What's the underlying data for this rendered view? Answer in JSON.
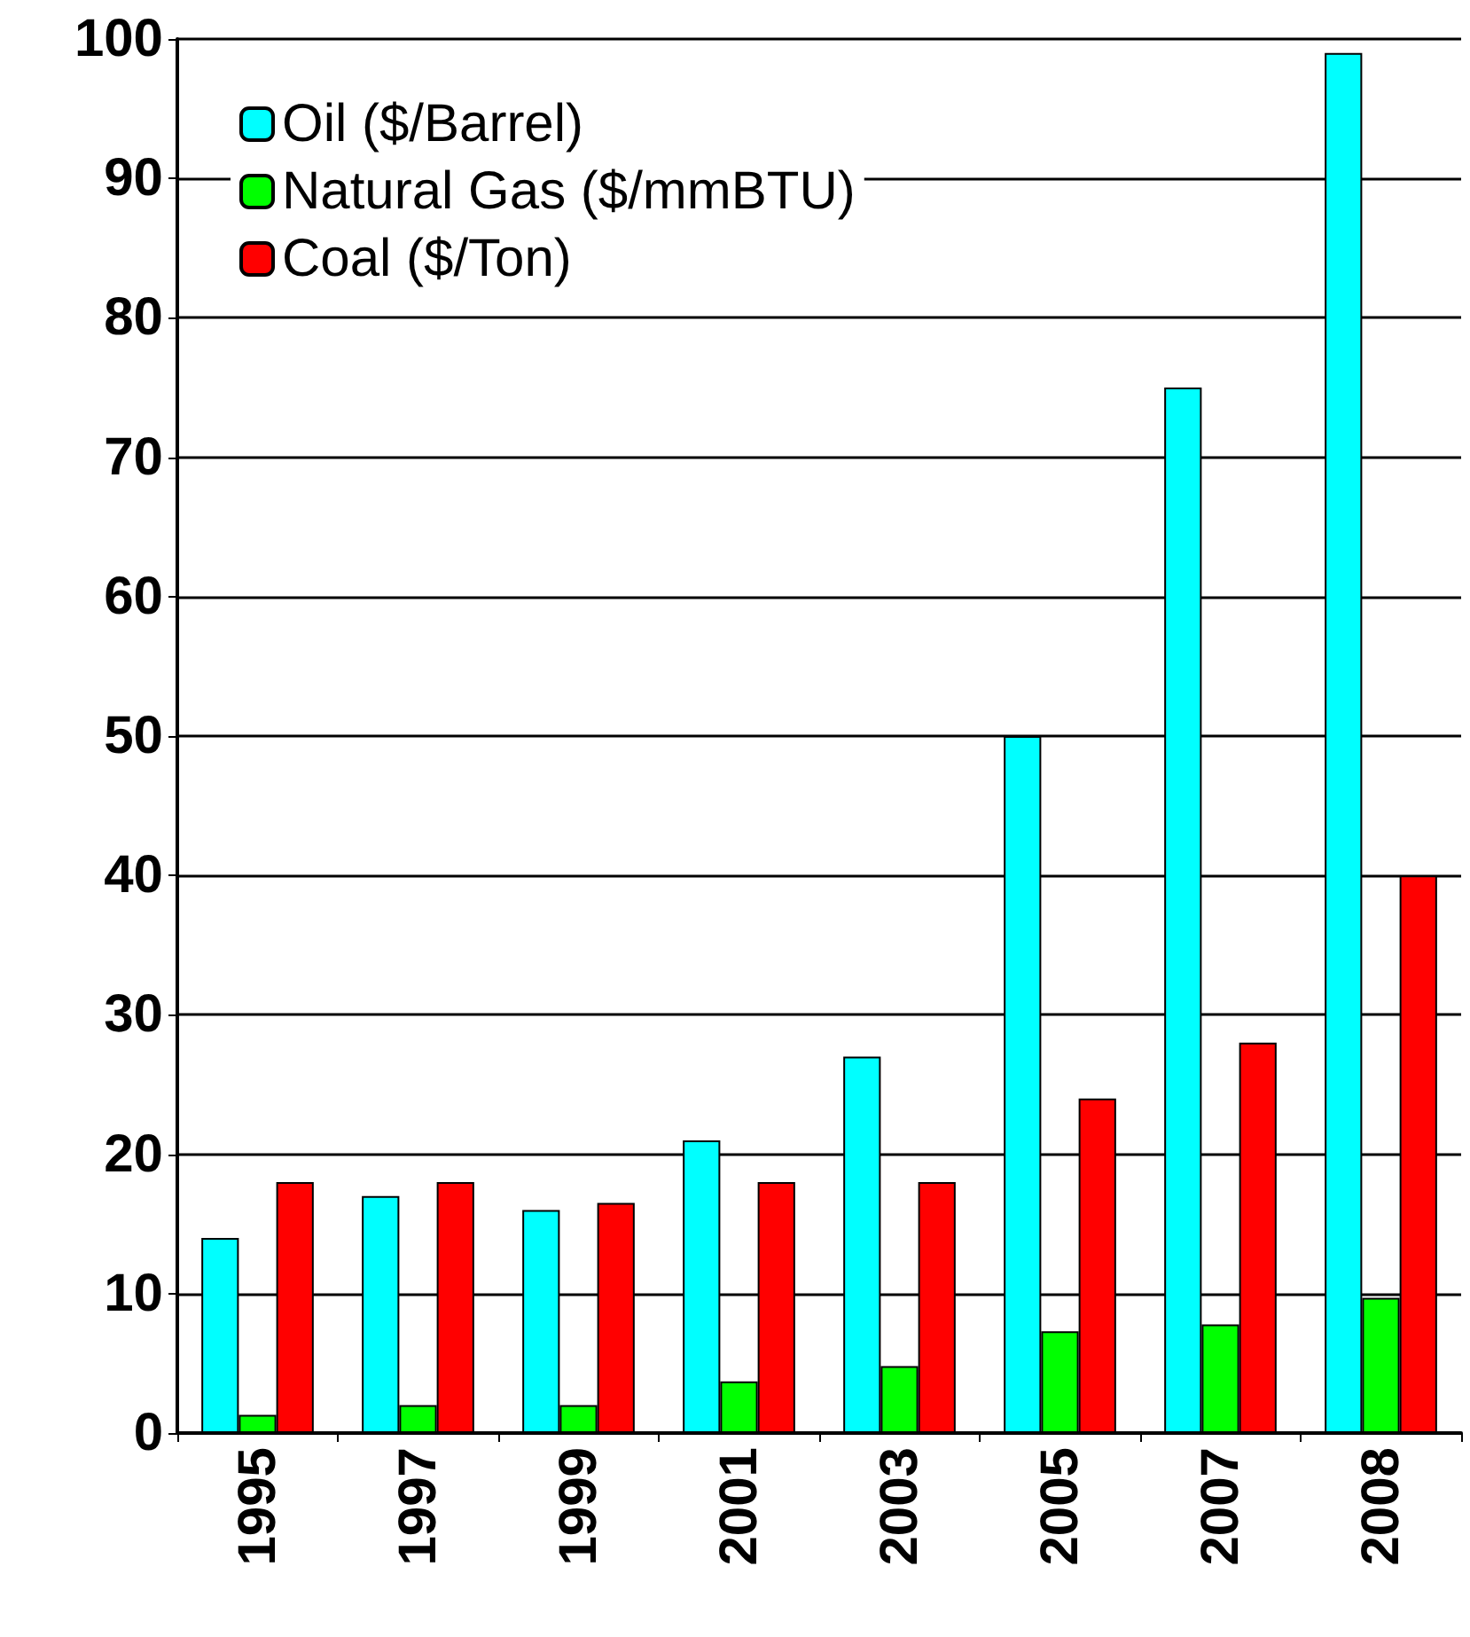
{
  "chart_data": {
    "type": "bar",
    "categories": [
      "1995",
      "1997",
      "1999",
      "2001",
      "2003",
      "2005",
      "2007",
      "2008"
    ],
    "series": [
      {
        "name": "Oil ($/Barrel)",
        "color": "#00ffff",
        "values": [
          14,
          17,
          16,
          21,
          27,
          50,
          75,
          99
        ]
      },
      {
        "name": "Natural Gas ($/mmBTU)",
        "color": "#00ff00",
        "values": [
          1.3,
          2,
          2,
          3.7,
          4.8,
          7.3,
          7.8,
          9.7
        ]
      },
      {
        "name": "Coal ($/Ton)",
        "color": "#ff0000",
        "values": [
          18,
          18,
          16.5,
          18,
          18,
          24,
          28,
          40
        ]
      }
    ],
    "ylim": [
      0,
      100
    ],
    "yticks": [
      0,
      10,
      20,
      30,
      40,
      50,
      60,
      70,
      80,
      90,
      100
    ],
    "grid": "y",
    "legend": "top left"
  }
}
